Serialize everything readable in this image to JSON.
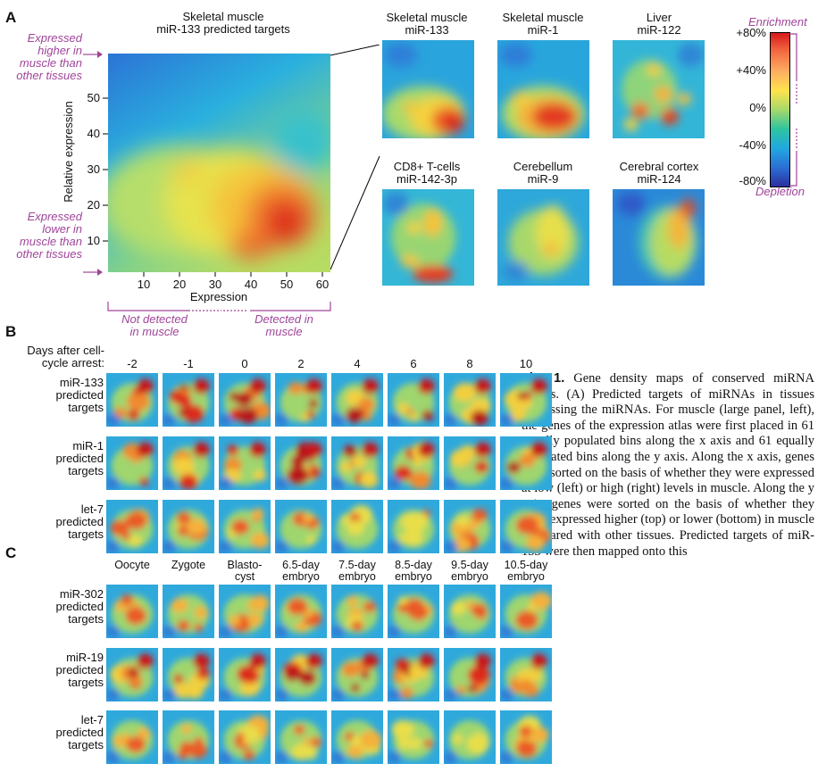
{
  "panel_a": {
    "letter": "A",
    "main_title_1": "Skeletal muscle",
    "main_title_2": "miR-133 predicted targets",
    "ylabel": "Relative expression",
    "xlabel": "Expression",
    "y_ticks": [
      "50",
      "40",
      "30",
      "20",
      "10"
    ],
    "x_ticks": [
      "10",
      "20",
      "30",
      "40",
      "50",
      "60"
    ],
    "note_higher": [
      "Expressed",
      "higher in",
      "muscle than",
      "other tissues"
    ],
    "note_lower": [
      "Expressed",
      "lower in",
      "muscle than",
      "other tissues"
    ],
    "note_not_detected": [
      "Not detected",
      "in muscle"
    ],
    "note_detected": [
      "Detected in",
      "muscle"
    ],
    "small_maps": [
      {
        "line1": "Skeletal muscle",
        "line2": "miR-133"
      },
      {
        "line1": "Skeletal muscle",
        "line2": "miR-1"
      },
      {
        "line1": "Liver",
        "line2": "miR-122"
      },
      {
        "line1": "CD8+ T-cells",
        "line2": "miR-142-3p"
      },
      {
        "line1": "Cerebellum",
        "line2": "miR-9"
      },
      {
        "line1": "Cerebral cortex",
        "line2": "miR-124"
      }
    ]
  },
  "colorbar": {
    "top_label": "Enrichment",
    "bottom_label": "Depletion",
    "ticks": [
      "+80%",
      "+40%",
      "0%",
      "-40%",
      "-80%"
    ],
    "colors": [
      "#d7191c",
      "#f46d43",
      "#fdae61",
      "#ffe34d",
      "#a6d96a",
      "#2ec4a0",
      "#21a8e0",
      "#2b6fd4",
      "#2a2f9e"
    ]
  },
  "panel_b": {
    "letter": "B",
    "header_1": "Days after cell-",
    "header_2": "cycle arrest:",
    "days": [
      "-2",
      "-1",
      "0",
      "2",
      "4",
      "6",
      "8",
      "10"
    ],
    "rows": [
      [
        "miR-133",
        "predicted",
        "targets"
      ],
      [
        "miR-1",
        "predicted",
        "targets"
      ],
      [
        "let-7",
        "predicted",
        "targets"
      ]
    ]
  },
  "panel_c": {
    "letter": "C",
    "stages": [
      [
        "",
        "Oocyte"
      ],
      [
        "",
        "Zygote"
      ],
      [
        "Blasto-",
        "cyst"
      ],
      [
        "6.5-day",
        "embryo"
      ],
      [
        "7.5-day",
        "embryo"
      ],
      [
        "8.5-day",
        "embryo"
      ],
      [
        "9.5-day",
        "embryo"
      ],
      [
        "10.5-day",
        "embryo"
      ]
    ],
    "rows": [
      [
        "miR-302",
        "predicted",
        "targets"
      ],
      [
        "miR-19",
        "predicted",
        "targets"
      ],
      [
        "let-7",
        "predicted",
        "targets"
      ]
    ]
  },
  "caption": {
    "figure_label": "Fig. 1.",
    "text": "Gene density maps of conserved miRNA targets. (A) Predicted targets of miRNAs in tissues expressing the miRNAs. For muscle (large panel, left), the genes of the expression atlas were first placed in 61 equally populated bins along the x axis and 61 equally populated bins along the y axis. Along the x axis, genes were sorted on the basis of whether they were expressed at low (left) or high (right) levels in muscle. Along the y axis, genes were sorted on the basis of whether they were expressed higher (top) or lower (bottom) in muscle compared with other tissues. Predicted targets of miR-133 were then mapped onto this"
  }
}
